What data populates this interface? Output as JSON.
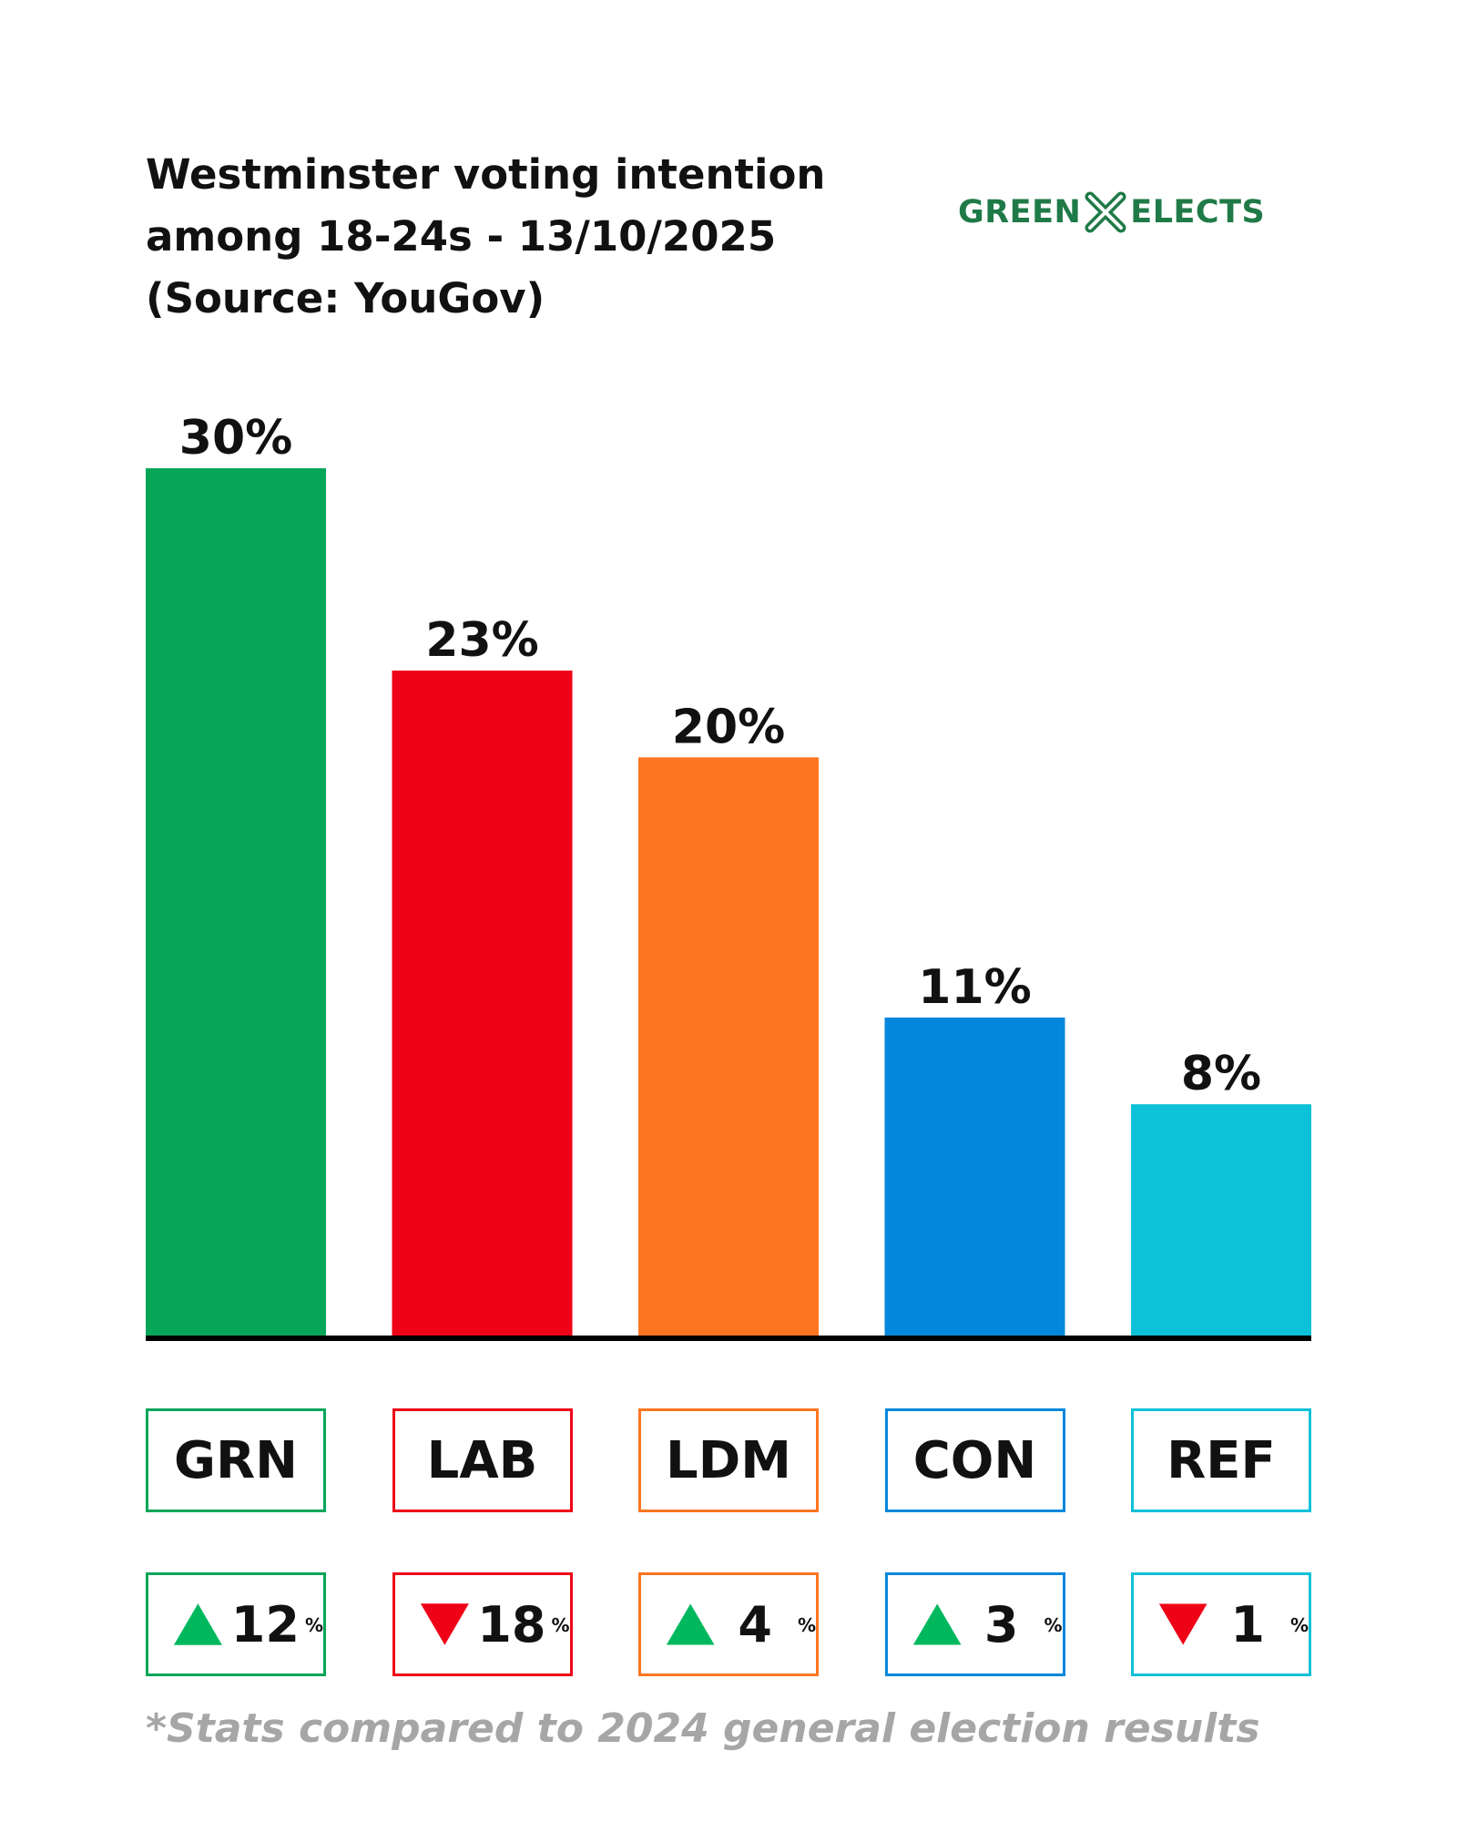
{
  "header": {
    "title_lines": [
      "Westminster voting intention",
      "among 18-24s - 13/10/2025",
      "(Source: YouGov)"
    ],
    "logo_left": "GREEN",
    "logo_right": "ELECTS",
    "logo_icon": "x-mark-icon",
    "logo_color": "#1f7a47"
  },
  "chart_data": {
    "type": "bar",
    "title": "Westminster voting intention among 18-24s - 13/10/2025 (Source: YouGov)",
    "categories": [
      "GRN",
      "LAB",
      "LDM",
      "CON",
      "REF"
    ],
    "values": [
      30,
      23,
      20,
      11,
      8
    ],
    "value_labels": [
      "30%",
      "23%",
      "20%",
      "11%",
      "8%"
    ],
    "colors": [
      "#06a659",
      "#ef0117",
      "#fd7521",
      "#0387dc",
      "#0dc1d8"
    ],
    "changes": [
      {
        "direction": "up",
        "value": "12",
        "unit": "%"
      },
      {
        "direction": "down",
        "value": "18",
        "unit": "%"
      },
      {
        "direction": "up",
        "value": "4",
        "unit": "%"
      },
      {
        "direction": "up",
        "value": "3",
        "unit": "%"
      },
      {
        "direction": "down",
        "value": "1",
        "unit": "%"
      }
    ],
    "ylim": [
      0,
      30
    ],
    "grid": false,
    "legend": "none"
  },
  "indicator_colors": {
    "up": "#01b85f",
    "down": "#ef0117"
  },
  "footnote": "*Stats compared to 2024 general election results"
}
